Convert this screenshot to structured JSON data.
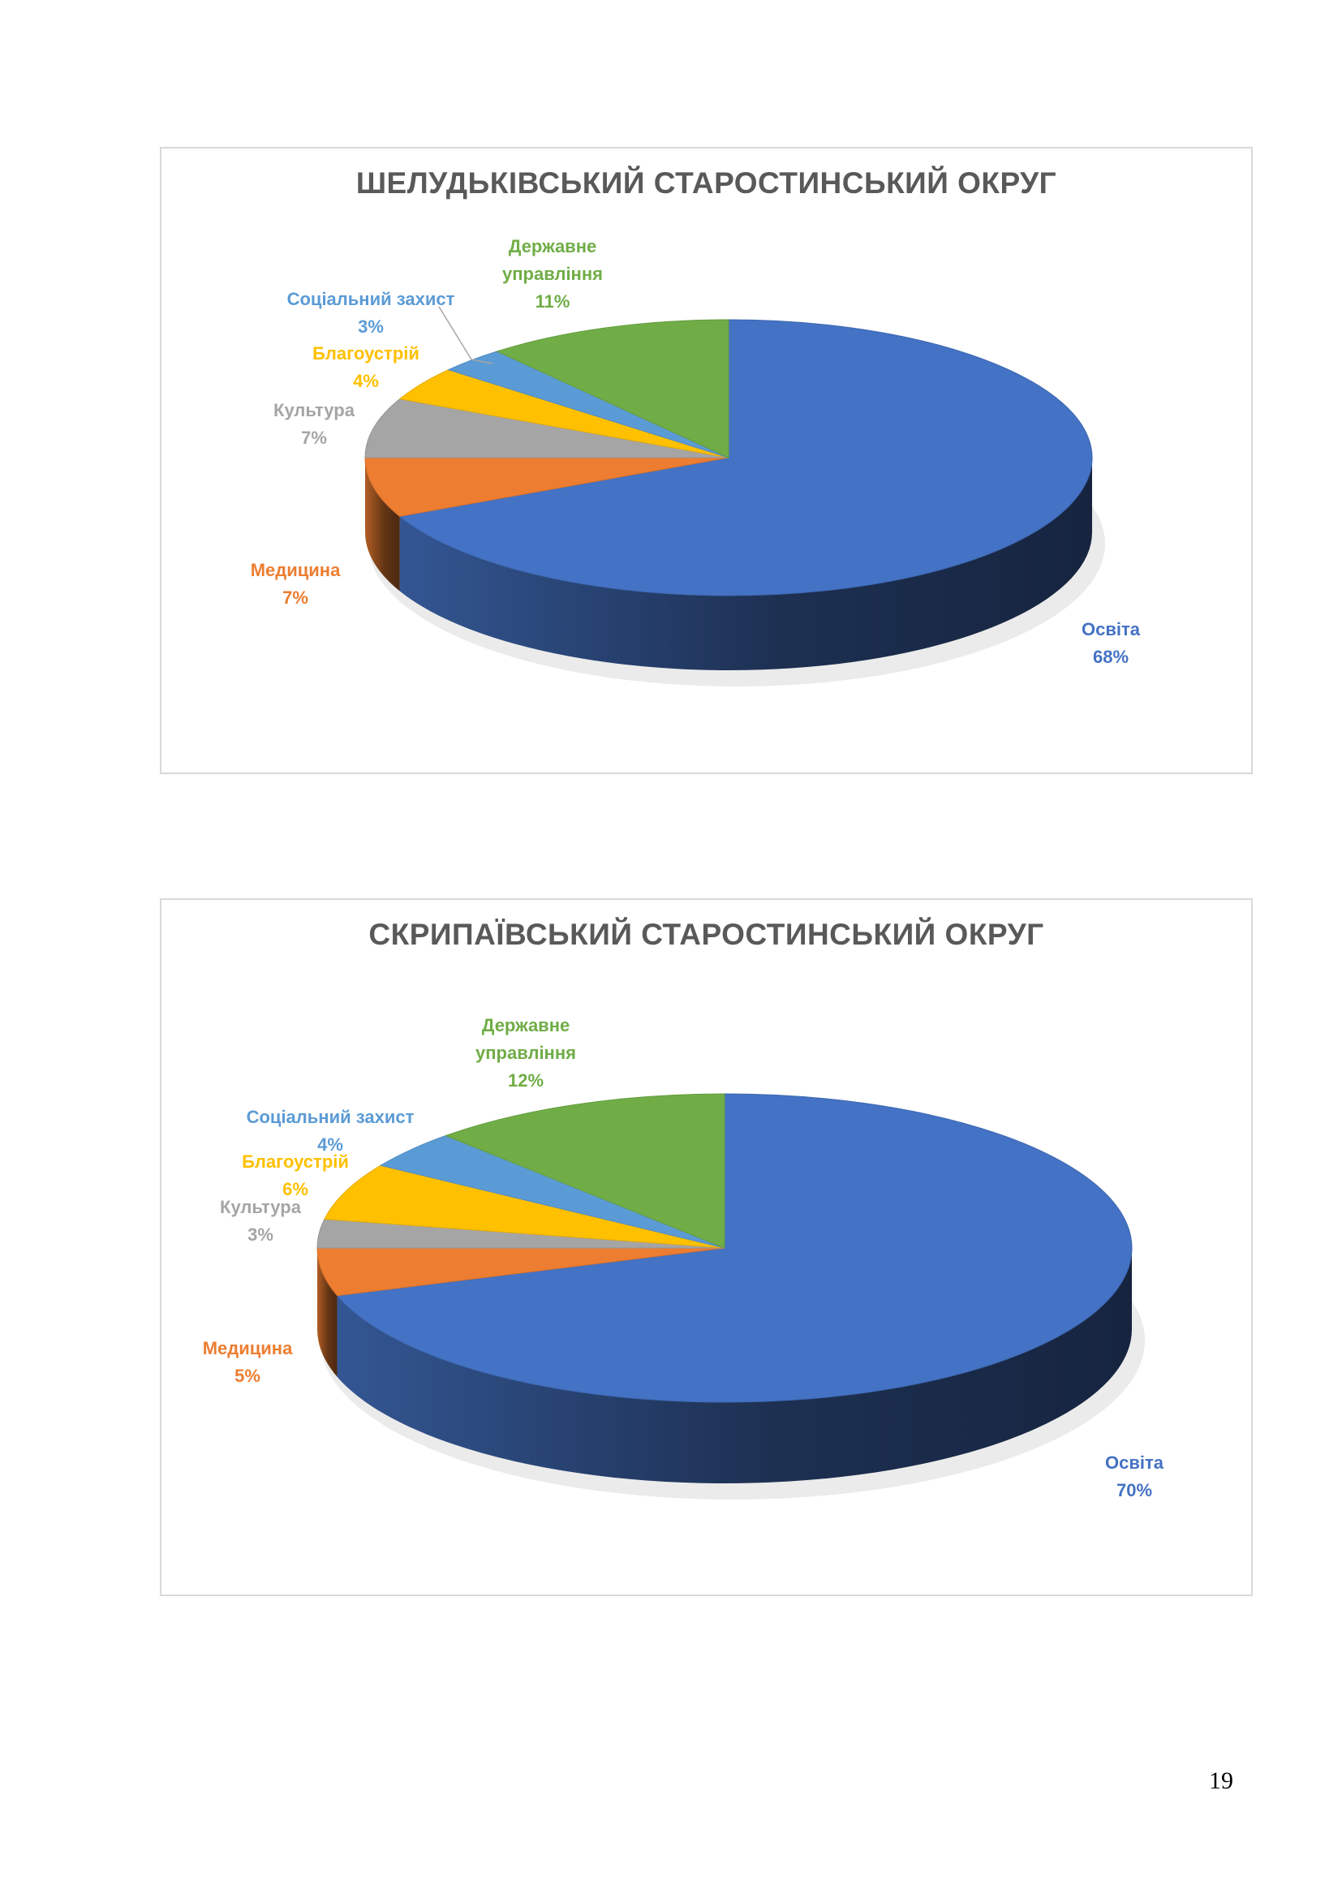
{
  "chart_data": [
    {
      "type": "pie",
      "title": "ШЕЛУДЬКІВСЬКИЙ СТАРОСТИНСЬКИЙ ОКРУГ",
      "slices": [
        {
          "label": "Освіта",
          "value": 68,
          "value_text": "68%",
          "color": "#4472c4",
          "label_color": "#4472c4"
        },
        {
          "label": "Медицина",
          "value": 7,
          "value_text": "7%",
          "color": "#ed7d31",
          "label_color": "#ed7d31"
        },
        {
          "label": "Культура",
          "value": 7,
          "value_text": "7%",
          "color": "#a5a5a5",
          "label_color": "#a5a5a5"
        },
        {
          "label": "Благоустрій",
          "value": 4,
          "value_text": "4%",
          "color": "#ffc000",
          "label_color": "#ffc000"
        },
        {
          "label": "Соціальний захист",
          "value": 3,
          "value_text": "3%",
          "color": "#5b9bd5",
          "label_color": "#5b9bd5"
        },
        {
          "label": "Державне управління",
          "value": 11,
          "value_text": "11%",
          "color": "#70ad47",
          "label_color": "#70ad47"
        }
      ]
    },
    {
      "type": "pie",
      "title": "СКРИПАЇВСЬКИЙ СТАРОСТИНСЬКИЙ ОКРУГ",
      "slices": [
        {
          "label": "Освіта",
          "value": 70,
          "value_text": "70%",
          "color": "#4472c4",
          "label_color": "#4472c4"
        },
        {
          "label": "Медицина",
          "value": 5,
          "value_text": "5%",
          "color": "#ed7d31",
          "label_color": "#ed7d31"
        },
        {
          "label": "Культура",
          "value": 3,
          "value_text": "3%",
          "color": "#a5a5a5",
          "label_color": "#a5a5a5"
        },
        {
          "label": "Благоустрій",
          "value": 6,
          "value_text": "6%",
          "color": "#ffc000",
          "label_color": "#ffc000"
        },
        {
          "label": "Соціальний захист",
          "value": 4,
          "value_text": "4%",
          "color": "#5b9bd5",
          "label_color": "#5b9bd5"
        },
        {
          "label": "Державне управління",
          "value": 12,
          "value_text": "12%",
          "color": "#70ad47",
          "label_color": "#70ad47"
        }
      ]
    }
  ],
  "page_number": "19"
}
